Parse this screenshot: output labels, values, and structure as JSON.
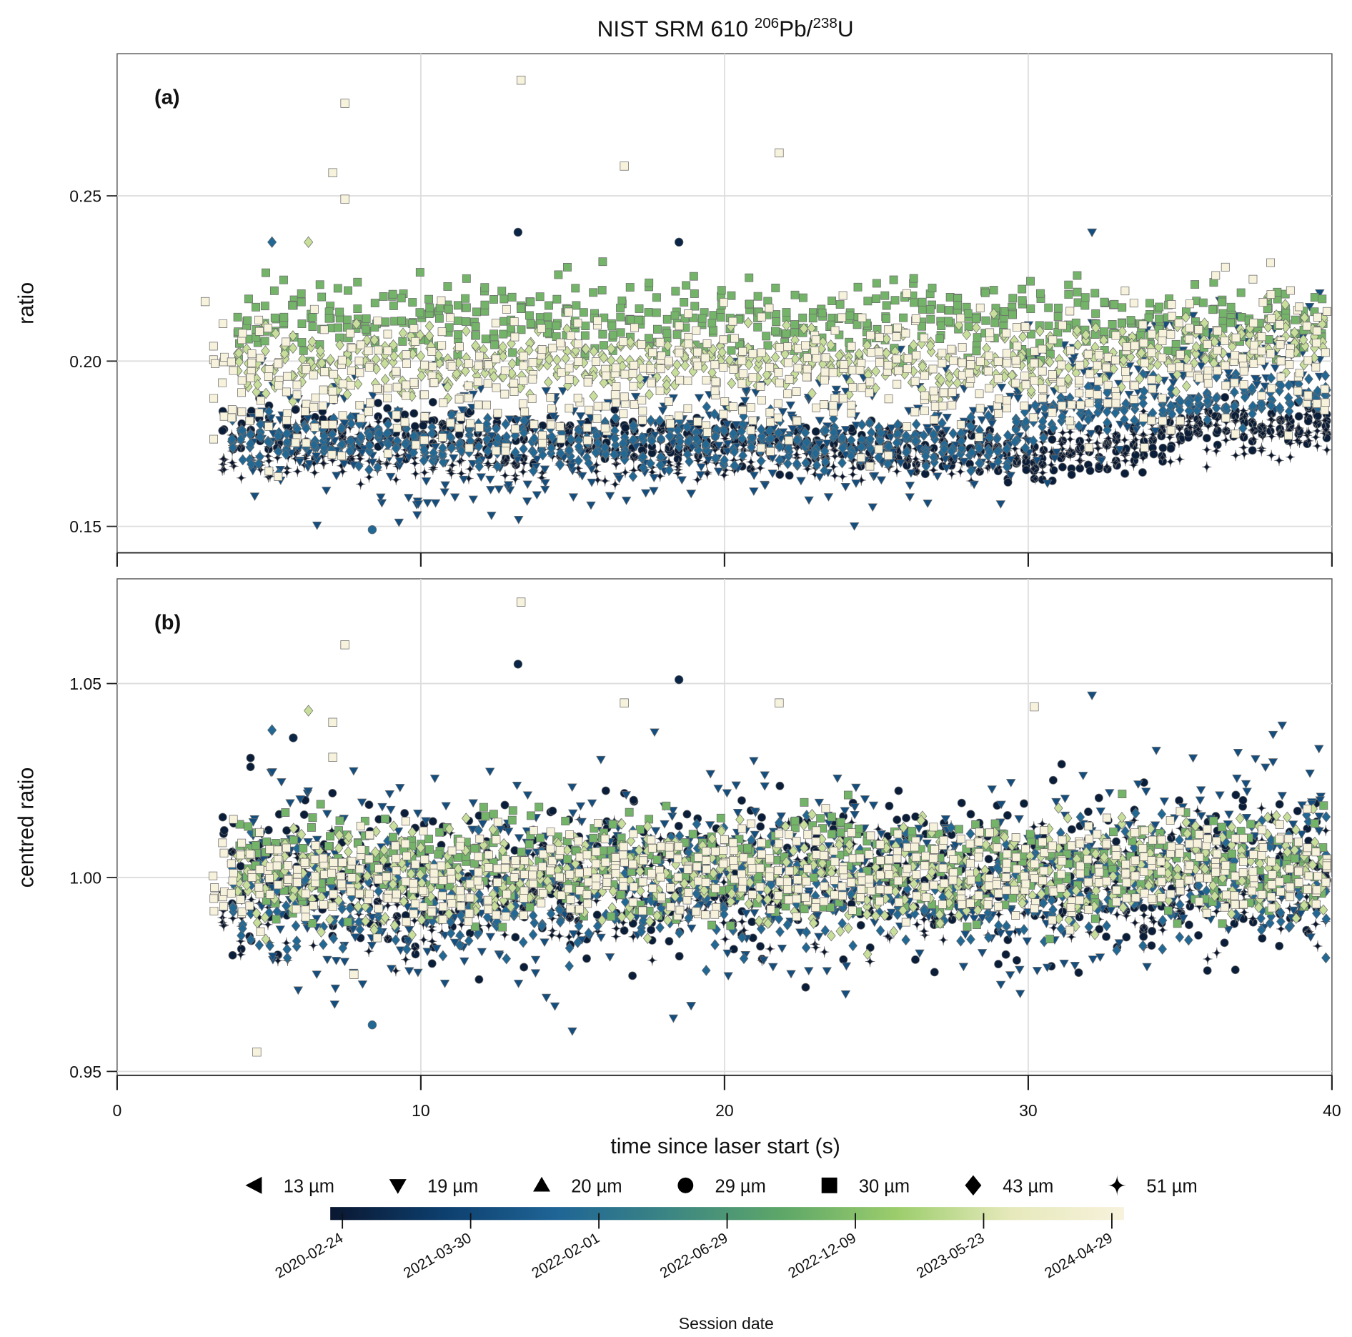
{
  "chart_data": {
    "type": "scatter",
    "title": {
      "prefix": "NIST SRM 610 ",
      "sup1": "206",
      "mid": "Pb/",
      "sup2": "238",
      "suffix": "U"
    },
    "xlabel": "time since laser start (s)",
    "xlim": [
      0,
      40
    ],
    "xticks": [
      "0",
      "10",
      "20",
      "30",
      "40"
    ],
    "grid": true,
    "panels": [
      {
        "tag": "(a)",
        "ylabel": "ratio",
        "ylim": [
          0.142,
          0.293
        ],
        "yticks": [
          0.15,
          0.2,
          0.25
        ],
        "ytick_labels": [
          "0.15",
          "0.20",
          "0.25"
        ]
      },
      {
        "tag": "(b)",
        "ylabel": "centred ratio",
        "ylim": [
          0.949,
          1.077
        ],
        "yticks": [
          0.95,
          1.0,
          1.05
        ],
        "ytick_labels": [
          "0.95",
          "1.00",
          "1.05"
        ]
      }
    ],
    "shape_legend": [
      {
        "shape": "triangle-left",
        "label": "13 µm"
      },
      {
        "shape": "triangle-down",
        "label": "19 µm"
      },
      {
        "shape": "triangle-up",
        "label": "20 µm"
      },
      {
        "shape": "circle",
        "label": "29 µm"
      },
      {
        "shape": "square",
        "label": "30 µm"
      },
      {
        "shape": "diamond",
        "label": "43 µm"
      },
      {
        "shape": "star",
        "label": "51 µm"
      }
    ],
    "colorbar": {
      "title": "Session date",
      "colors": [
        "#0a1730",
        "#0d3f6e",
        "#1f6596",
        "#3c8683",
        "#5ea768",
        "#9ccd6c",
        "#e6e9bb",
        "#f7f2dc"
      ],
      "ticks": [
        "2020-02-24",
        "2021-03-30",
        "2022-02-01",
        "2022-06-29",
        "2022-12-09",
        "2023-05-23",
        "2024-04-29"
      ]
    },
    "series": [
      {
        "name": "2020 29 µm",
        "shape": "circle",
        "color_pos": 0.02,
        "x_range": [
          3.5,
          39.8
        ],
        "a_center": [
          [
            3.5,
            0.18
          ],
          [
            20,
            0.176
          ],
          [
            28,
            0.174
          ],
          [
            30,
            0.17
          ],
          [
            34,
            0.172
          ],
          [
            35.5,
            0.18
          ],
          [
            40,
            0.183
          ]
        ],
        "a_sd": 0.004,
        "b_center": [
          [
            3.5,
            1.0
          ],
          [
            40,
            1.0
          ]
        ],
        "b_sd": 0.011
      },
      {
        "name": "2020 51 µm",
        "shape": "star",
        "color_pos": 0.0,
        "x_range": [
          3.5,
          39.8
        ],
        "a_center": [
          [
            3.5,
            0.172
          ],
          [
            30,
            0.172
          ],
          [
            35,
            0.178
          ],
          [
            40,
            0.18
          ]
        ],
        "a_sd": 0.004,
        "b_center": [
          [
            3.5,
            0.995
          ],
          [
            40,
            1.0
          ]
        ],
        "b_sd": 0.008
      },
      {
        "name": "2021 19 µm",
        "shape": "triangle-down",
        "color_pos": 0.2,
        "x_range": [
          4.5,
          39.8
        ],
        "a_center": [
          [
            4.5,
            0.175
          ],
          [
            29,
            0.176
          ],
          [
            31,
            0.19
          ],
          [
            40,
            0.205
          ]
        ],
        "a_sd": 0.01,
        "b_center": [
          [
            4.5,
            1.0
          ],
          [
            30,
            1.0
          ],
          [
            40,
            1.012
          ]
        ],
        "b_sd": 0.014
      },
      {
        "name": "2022 43 µm",
        "shape": "diamond",
        "color_pos": 0.3,
        "x_range": [
          3.8,
          39.8
        ],
        "a_center": [
          [
            3.8,
            0.176
          ],
          [
            29,
            0.175
          ],
          [
            31,
            0.186
          ],
          [
            40,
            0.19
          ]
        ],
        "a_sd": 0.004,
        "b_center": [
          [
            3.8,
            0.995
          ],
          [
            40,
            1.0
          ]
        ],
        "b_sd": 0.008
      },
      {
        "name": "2022 30 µm",
        "shape": "square",
        "color_pos": 0.62,
        "x_range": [
          4.0,
          39.8
        ],
        "a_center": [
          [
            4,
            0.212
          ],
          [
            30,
            0.213
          ],
          [
            40,
            0.21
          ]
        ],
        "a_sd": 0.006,
        "b_center": [
          [
            4,
            1.003
          ],
          [
            40,
            1.003
          ]
        ],
        "b_sd": 0.007
      },
      {
        "name": "2023 43 µm",
        "shape": "diamond",
        "color_pos": 0.8,
        "x_range": [
          4.0,
          39.8
        ],
        "a_center": [
          [
            4,
            0.199
          ],
          [
            30,
            0.2
          ],
          [
            40,
            0.206
          ]
        ],
        "a_sd": 0.005,
        "b_center": [
          [
            4,
            1.0
          ],
          [
            40,
            1.002
          ]
        ],
        "b_sd": 0.007
      },
      {
        "name": "2024 30 µm",
        "shape": "square",
        "color_pos": 1.0,
        "x_range": [
          3.2,
          39.8
        ],
        "a_center": [
          [
            3.2,
            0.192
          ],
          [
            29,
            0.196
          ],
          [
            34,
            0.2
          ],
          [
            40,
            0.205
          ]
        ],
        "a_sd": 0.011,
        "b_center": [
          [
            3.2,
            1.0
          ],
          [
            40,
            1.003
          ]
        ],
        "b_sd": 0.006
      }
    ],
    "outliers": {
      "a": [
        {
          "x": 2.9,
          "y": 0.218,
          "shape": "square",
          "color_pos": 1.0
        },
        {
          "x": 7.1,
          "y": 0.257,
          "shape": "square",
          "color_pos": 1.0
        },
        {
          "x": 7.5,
          "y": 0.278,
          "shape": "square",
          "color_pos": 1.0
        },
        {
          "x": 7.5,
          "y": 0.249,
          "shape": "square",
          "color_pos": 1.0
        },
        {
          "x": 13.3,
          "y": 0.285,
          "shape": "square",
          "color_pos": 1.0
        },
        {
          "x": 16.7,
          "y": 0.259,
          "shape": "square",
          "color_pos": 1.0
        },
        {
          "x": 21.8,
          "y": 0.263,
          "shape": "square",
          "color_pos": 1.0
        },
        {
          "x": 13.2,
          "y": 0.239,
          "shape": "circle",
          "color_pos": 0.05
        },
        {
          "x": 18.5,
          "y": 0.236,
          "shape": "circle",
          "color_pos": 0.05
        },
        {
          "x": 8.4,
          "y": 0.149,
          "shape": "circle",
          "color_pos": 0.3
        },
        {
          "x": 6.3,
          "y": 0.236,
          "shape": "diamond",
          "color_pos": 0.8
        },
        {
          "x": 5.1,
          "y": 0.236,
          "shape": "diamond",
          "color_pos": 0.3
        },
        {
          "x": 32.1,
          "y": 0.239,
          "shape": "triangle-down",
          "color_pos": 0.2
        },
        {
          "x": 18.9,
          "y": 0.16,
          "shape": "triangle-down",
          "color_pos": 0.2
        }
      ],
      "b": [
        {
          "x": 13.3,
          "y": 1.071,
          "shape": "square",
          "color_pos": 1.0
        },
        {
          "x": 7.5,
          "y": 1.06,
          "shape": "square",
          "color_pos": 1.0
        },
        {
          "x": 13.2,
          "y": 1.055,
          "shape": "circle",
          "color_pos": 0.05
        },
        {
          "x": 18.5,
          "y": 1.051,
          "shape": "circle",
          "color_pos": 0.05
        },
        {
          "x": 16.7,
          "y": 1.045,
          "shape": "square",
          "color_pos": 1.0
        },
        {
          "x": 21.8,
          "y": 1.045,
          "shape": "square",
          "color_pos": 1.0
        },
        {
          "x": 30.2,
          "y": 1.044,
          "shape": "square",
          "color_pos": 1.0
        },
        {
          "x": 6.3,
          "y": 1.043,
          "shape": "diamond",
          "color_pos": 0.8
        },
        {
          "x": 5.1,
          "y": 1.038,
          "shape": "diamond",
          "color_pos": 0.3
        },
        {
          "x": 5.8,
          "y": 1.036,
          "shape": "circle",
          "color_pos": 0.05
        },
        {
          "x": 7.1,
          "y": 1.04,
          "shape": "square",
          "color_pos": 1.0
        },
        {
          "x": 7.1,
          "y": 1.031,
          "shape": "square",
          "color_pos": 1.0
        },
        {
          "x": 8.4,
          "y": 0.962,
          "shape": "circle",
          "color_pos": 0.3
        },
        {
          "x": 4.6,
          "y": 0.955,
          "shape": "square",
          "color_pos": 1.0
        },
        {
          "x": 7.8,
          "y": 0.975,
          "shape": "square",
          "color_pos": 1.0
        },
        {
          "x": 18.9,
          "y": 0.967,
          "shape": "triangle-down",
          "color_pos": 0.2
        },
        {
          "x": 32.1,
          "y": 1.047,
          "shape": "triangle-down",
          "color_pos": 0.2
        }
      ]
    }
  }
}
